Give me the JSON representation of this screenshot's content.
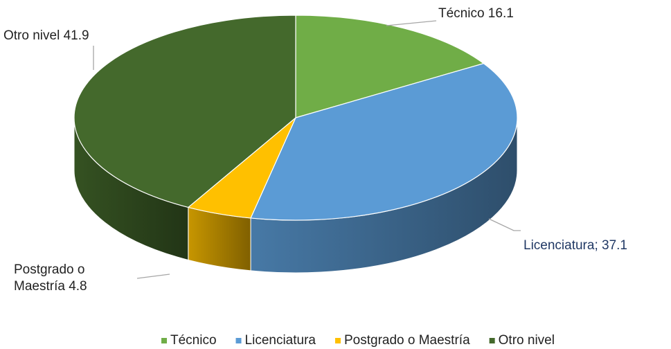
{
  "chart_data": {
    "type": "pie",
    "three_d": true,
    "categories": [
      "Técnico",
      "Licenciatura",
      "Postgrado o Maestría",
      "Otro nivel"
    ],
    "values": [
      16.1,
      37.1,
      4.8,
      41.9
    ],
    "value_labels": [
      "Técnico 16.1",
      "Licenciatura; 37.1",
      "Postgrado o Maestría 4.8",
      "Otro nivel 41.9"
    ],
    "colors": [
      "#70ad47",
      "#5b9bd5",
      "#ffc000",
      "#44692c"
    ],
    "legend": "bottom"
  }
}
